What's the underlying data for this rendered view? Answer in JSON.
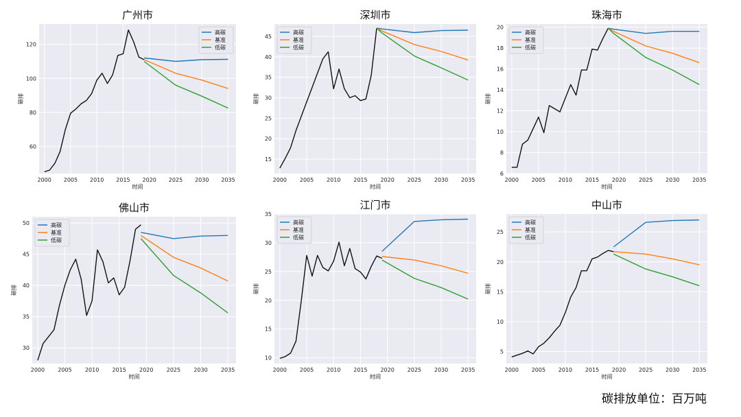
{
  "footer_note": "碳排放单位：百万吨",
  "colors": {
    "history": "#111111",
    "high": "#1f77b4",
    "baseline": "#ff7f0e",
    "low": "#2ca02c",
    "plot_bg": "#eaeaf2",
    "grid": "#ffffff"
  },
  "chart_data": [
    {
      "type": "line",
      "title": "广州市",
      "xlabel": "时间",
      "ylabel": "碳排",
      "xlim": [
        1999,
        2036.5
      ],
      "ylim": [
        44,
        132
      ],
      "xticks": [
        2000,
        2005,
        2010,
        2015,
        2020,
        2025,
        2030,
        2035
      ],
      "yticks": [
        60,
        80,
        100,
        120
      ],
      "legend_position": "top-right",
      "grid": true,
      "series": [
        {
          "key": "history",
          "x": [
            2000,
            2001,
            2002,
            2003,
            2004,
            2005,
            2006,
            2007,
            2008,
            2009,
            2010,
            2011,
            2012,
            2013,
            2014,
            2015,
            2016,
            2017,
            2018,
            2019
          ],
          "y": [
            45,
            46,
            50,
            57,
            70,
            79.5,
            82,
            85,
            87,
            91,
            99,
            103,
            97,
            102,
            113.5,
            114.5,
            128.5,
            121.5,
            112.5,
            111
          ]
        },
        {
          "key": "high",
          "name": "高碳",
          "x": [
            2019,
            2025,
            2030,
            2035
          ],
          "y": [
            112,
            110,
            111,
            111.2
          ]
        },
        {
          "key": "baseline",
          "name": "基准",
          "x": [
            2019,
            2025,
            2030,
            2035
          ],
          "y": [
            111,
            103,
            99,
            94
          ]
        },
        {
          "key": "low",
          "name": "低碳",
          "x": [
            2019,
            2025,
            2030,
            2035
          ],
          "y": [
            110,
            96,
            89.5,
            82.5
          ]
        }
      ]
    },
    {
      "type": "line",
      "title": "深圳市",
      "xlabel": "时间",
      "ylabel": "碳排",
      "xlim": [
        1999,
        2036.5
      ],
      "ylim": [
        11.5,
        48
      ],
      "xticks": [
        2000,
        2005,
        2010,
        2015,
        2020,
        2025,
        2030,
        2035
      ],
      "yticks": [
        15,
        20,
        25,
        30,
        35,
        40,
        45
      ],
      "legend_position": "top-left",
      "grid": true,
      "series": [
        {
          "key": "history",
          "x": [
            2000,
            2001,
            2002,
            2003,
            2004,
            2005,
            2006,
            2007,
            2008,
            2009,
            2010,
            2011,
            2012,
            2013,
            2014,
            2015,
            2016,
            2017,
            2018
          ],
          "y": [
            12.8,
            15.2,
            17.8,
            22,
            25.5,
            29,
            32.5,
            36,
            39.5,
            41.2,
            32.2,
            37,
            32.2,
            30,
            30.5,
            29.3,
            29.7,
            35.5,
            47
          ]
        },
        {
          "key": "high",
          "name": "高碳",
          "x": [
            2018,
            2019,
            2025,
            2030,
            2035
          ],
          "y": [
            47,
            46.8,
            45.9,
            46.4,
            46.5
          ]
        },
        {
          "key": "baseline",
          "name": "基准",
          "x": [
            2018,
            2019,
            2025,
            2030,
            2035
          ],
          "y": [
            47,
            46.3,
            43,
            41.3,
            39.2
          ]
        },
        {
          "key": "low",
          "name": "低碳",
          "x": [
            2018,
            2019,
            2025,
            2030,
            2035
          ],
          "y": [
            47,
            45.8,
            40.2,
            37.3,
            34.3
          ]
        }
      ]
    },
    {
      "type": "line",
      "title": "珠海市",
      "xlabel": "时间",
      "ylabel": "碳排",
      "xlim": [
        1999,
        2036.5
      ],
      "ylim": [
        6,
        20.3
      ],
      "xticks": [
        2000,
        2005,
        2010,
        2015,
        2020,
        2025,
        2030,
        2035
      ],
      "yticks": [
        6,
        8,
        10,
        12,
        14,
        16,
        18,
        20
      ],
      "legend_position": "top-left",
      "grid": true,
      "series": [
        {
          "key": "history",
          "x": [
            2000,
            2001,
            2002,
            2003,
            2004,
            2005,
            2006,
            2007,
            2008,
            2009,
            2010,
            2011,
            2012,
            2013,
            2014,
            2015,
            2016,
            2017,
            2018
          ],
          "y": [
            6.6,
            6.6,
            8.8,
            9.2,
            10.3,
            11.4,
            9.9,
            12.5,
            12.2,
            11.9,
            13.2,
            14.5,
            13.5,
            15.9,
            15.9,
            17.9,
            17.8,
            18.9,
            19.9
          ]
        },
        {
          "key": "high",
          "name": "高碳",
          "x": [
            2018,
            2019,
            2025,
            2030,
            2035
          ],
          "y": [
            19.9,
            19.8,
            19.4,
            19.6,
            19.6
          ]
        },
        {
          "key": "baseline",
          "name": "基准",
          "x": [
            2018,
            2019,
            2025,
            2030,
            2035
          ],
          "y": [
            19.9,
            19.6,
            18.2,
            17.5,
            16.6
          ]
        },
        {
          "key": "low",
          "name": "低碳",
          "x": [
            2018,
            2019,
            2025,
            2030,
            2035
          ],
          "y": [
            19.9,
            19.4,
            17.1,
            15.9,
            14.5
          ]
        }
      ]
    },
    {
      "type": "line",
      "title": "佛山市",
      "xlabel": "时间",
      "ylabel": "碳排",
      "xlim": [
        1999,
        2036.5
      ],
      "ylim": [
        27.5,
        51
      ],
      "xticks": [
        2000,
        2005,
        2010,
        2015,
        2020,
        2025,
        2030,
        2035
      ],
      "yticks": [
        30,
        35,
        40,
        45,
        50
      ],
      "legend_position": "top-left",
      "grid": true,
      "series": [
        {
          "key": "history",
          "x": [
            2000,
            2001,
            2002,
            2003,
            2004,
            2005,
            2006,
            2007,
            2008,
            2009,
            2010,
            2011,
            2012,
            2013,
            2014,
            2015,
            2016,
            2017,
            2018,
            2019
          ],
          "y": [
            28,
            30.7,
            31.8,
            32.9,
            36.8,
            40,
            42.5,
            44.2,
            41,
            35.2,
            37.5,
            45.7,
            43.8,
            40.4,
            41.2,
            38.5,
            39.7,
            44,
            49,
            49.7
          ]
        },
        {
          "key": "high",
          "name": "高碳",
          "x": [
            2019,
            2025,
            2030,
            2035
          ],
          "y": [
            48.5,
            47.5,
            47.9,
            48
          ]
        },
        {
          "key": "baseline",
          "name": "基准",
          "x": [
            2019,
            2025,
            2030,
            2035
          ],
          "y": [
            48,
            44.5,
            42.8,
            40.7
          ]
        },
        {
          "key": "low",
          "name": "低碳",
          "x": [
            2019,
            2025,
            2030,
            2035
          ],
          "y": [
            47.5,
            41.6,
            38.8,
            35.6
          ]
        }
      ]
    },
    {
      "type": "line",
      "title": "江门市",
      "xlabel": "时间",
      "ylabel": "碳排",
      "xlim": [
        1999,
        2036.5
      ],
      "ylim": [
        9,
        35
      ],
      "xticks": [
        2000,
        2005,
        2010,
        2015,
        2020,
        2025,
        2030,
        2035
      ],
      "yticks": [
        10,
        15,
        20,
        25,
        30,
        35
      ],
      "legend_position": "top-left",
      "grid": true,
      "series": [
        {
          "key": "history",
          "x": [
            2000,
            2001,
            2002,
            2003,
            2004,
            2005,
            2006,
            2007,
            2008,
            2009,
            2010,
            2011,
            2012,
            2013,
            2014,
            2015,
            2016,
            2017,
            2018,
            2019
          ],
          "y": [
            9.9,
            10.2,
            10.8,
            12.9,
            20,
            27.8,
            24.2,
            27.8,
            25.7,
            25.1,
            26.8,
            30.1,
            26,
            29,
            25.5,
            24.9,
            23.7,
            25.9,
            27.7,
            27.3
          ]
        },
        {
          "key": "high",
          "name": "高碳",
          "x": [
            2019,
            2025,
            2030,
            2035
          ],
          "y": [
            28.5,
            33.7,
            34,
            34.1
          ]
        },
        {
          "key": "baseline",
          "name": "基准",
          "x": [
            2019,
            2025,
            2030,
            2035
          ],
          "y": [
            27.6,
            27,
            26,
            24.7
          ]
        },
        {
          "key": "low",
          "name": "低碳",
          "x": [
            2019,
            2025,
            2030,
            2035
          ],
          "y": [
            27,
            23.8,
            22.2,
            20.2
          ]
        }
      ]
    },
    {
      "type": "line",
      "title": "中山市",
      "xlabel": "时间",
      "ylabel": "碳排",
      "xlim": [
        1999,
        2036.5
      ],
      "ylim": [
        3,
        28
      ],
      "xticks": [
        2000,
        2005,
        2010,
        2015,
        2020,
        2025,
        2030,
        2035
      ],
      "yticks": [
        5,
        10,
        15,
        20,
        25
      ],
      "legend_position": "top-left",
      "grid": true,
      "series": [
        {
          "key": "history",
          "x": [
            2000,
            2001,
            2002,
            2003,
            2004,
            2005,
            2006,
            2007,
            2008,
            2009,
            2010,
            2011,
            2012,
            2013,
            2014,
            2015,
            2016,
            2017,
            2018,
            2019
          ],
          "y": [
            4.1,
            4.4,
            4.7,
            5.1,
            4.6,
            5.8,
            6.4,
            7.3,
            8.4,
            9.4,
            11.5,
            14.1,
            15.7,
            18.5,
            18.5,
            20.5,
            20.8,
            21.4,
            21.9,
            21.7
          ]
        },
        {
          "key": "high",
          "name": "高碳",
          "x": [
            2019,
            2025,
            2030,
            2035
          ],
          "y": [
            22.5,
            26.6,
            26.9,
            27
          ]
        },
        {
          "key": "baseline",
          "name": "基准",
          "x": [
            2019,
            2025,
            2030,
            2035
          ],
          "y": [
            21.7,
            21.3,
            20.5,
            19.5
          ]
        },
        {
          "key": "low",
          "name": "低碳",
          "x": [
            2019,
            2025,
            2030,
            2035
          ],
          "y": [
            21.3,
            18.8,
            17.5,
            16
          ]
        }
      ]
    }
  ]
}
